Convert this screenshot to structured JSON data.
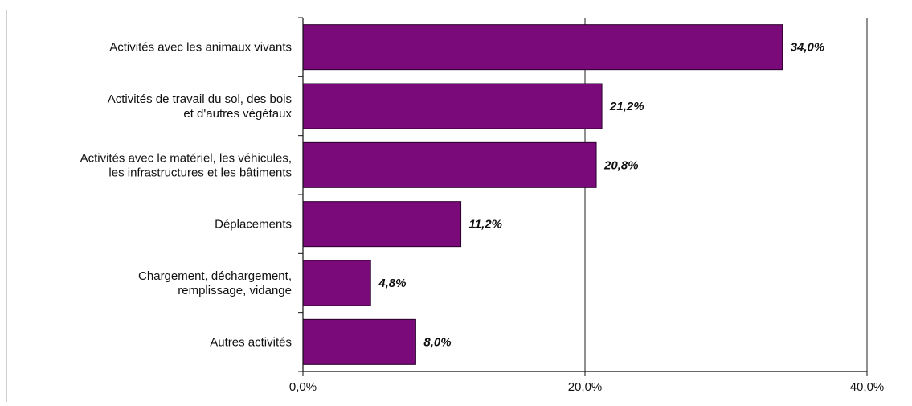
{
  "chart_data": {
    "type": "bar",
    "orientation": "horizontal",
    "categories": [
      [
        "Activités avec les animaux vivants"
      ],
      [
        "Activités de travail du sol, des bois",
        "et d'autres végétaux"
      ],
      [
        "Activités avec le matériel, les véhicules,",
        "les infrastructures et les bâtiments"
      ],
      [
        "Déplacements"
      ],
      [
        "Chargement, déchargement,",
        "remplissage, vidange"
      ],
      [
        "Autres activités"
      ]
    ],
    "values": [
      34.0,
      21.2,
      20.8,
      11.2,
      4.8,
      8.0
    ],
    "value_labels": [
      "34,0%",
      "21,2%",
      "20,8%",
      "11,2%",
      "4,8%",
      "8,0%"
    ],
    "xlim": [
      0,
      40
    ],
    "ticks": [
      0,
      20,
      40
    ],
    "tick_labels": [
      "0,0%",
      "20,0%",
      "40,0%"
    ],
    "grid": true,
    "legend": "none",
    "bar_color": "#7a0a7a",
    "title": "",
    "xlabel": "",
    "ylabel": ""
  }
}
